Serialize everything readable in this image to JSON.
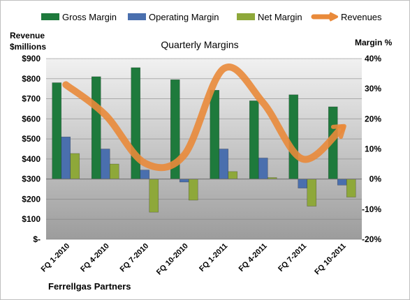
{
  "chart_data": {
    "type": "bar",
    "title": "Quarterly Margins",
    "left_axis_title_line1": "Revenue",
    "left_axis_title_line2": "$millions",
    "right_axis_title": "Margin %",
    "footer": "Ferrellgas Partners",
    "categories": [
      "FQ 1-2010",
      "FQ 4-2010",
      "FQ 7-2010",
      "FQ 10-2010",
      "FQ 1-2011",
      "FQ 4-2011",
      "FQ 7-2011",
      "FQ 10-2011"
    ],
    "left_axis": {
      "ylim": [
        0,
        900
      ],
      "ticks": [
        0,
        100,
        200,
        300,
        400,
        500,
        600,
        700,
        800,
        900
      ],
      "tick_labels": [
        "$-",
        "$100",
        "$200",
        "$300",
        "$400",
        "$500",
        "$600",
        "$700",
        "$800",
        "$900"
      ]
    },
    "right_axis": {
      "ylim": [
        -20,
        40
      ],
      "ticks": [
        -20,
        -10,
        0,
        10,
        20,
        30,
        40
      ],
      "tick_labels": [
        "-20%",
        "-10%",
        "0%",
        "10%",
        "20%",
        "30%",
        "40%"
      ]
    },
    "series": [
      {
        "name": "Gross Margin",
        "kind": "bar",
        "axis": "right",
        "color": "#1e7a3c",
        "values": [
          32,
          34,
          37,
          33,
          29.5,
          26,
          28,
          24
        ]
      },
      {
        "name": "Operating Margin",
        "kind": "bar",
        "axis": "right",
        "color": "#4a6fae",
        "values": [
          14,
          10,
          3,
          -1,
          10,
          7,
          -3,
          -2
        ]
      },
      {
        "name": "Net Margin",
        "kind": "bar",
        "axis": "right",
        "color": "#8ea83a",
        "values": [
          8.5,
          5,
          -11,
          -7,
          2.5,
          0.5,
          -9,
          -6
        ]
      },
      {
        "name": "Revenues",
        "kind": "line",
        "axis": "left",
        "color": "#e98a3a",
        "values": [
          770,
          620,
          380,
          420,
          850,
          680,
          400,
          555
        ]
      }
    ],
    "grid": true,
    "legend_position": "top"
  }
}
